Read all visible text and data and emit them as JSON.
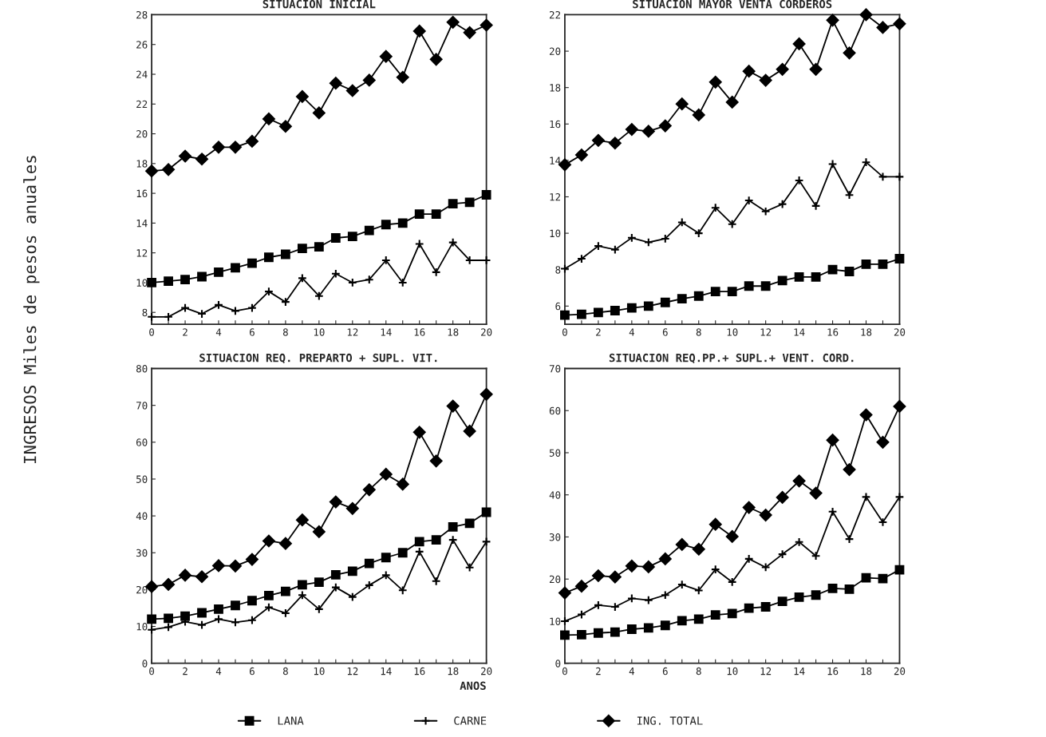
{
  "chart_data": [
    {
      "type": "line",
      "title": "SITUACION INICIAL",
      "ylabel": "INGRESOS Miles de pesos anuales",
      "legend": "bottom",
      "x": [
        0,
        1,
        2,
        3,
        4,
        5,
        6,
        7,
        8,
        9,
        10,
        11,
        12,
        13,
        14,
        15,
        16,
        17,
        18,
        19,
        20
      ],
      "series": [
        {
          "name": "LANA",
          "color": "#000000",
          "marker": "square",
          "values": [
            10.0,
            10.1,
            10.2,
            10.4,
            10.7,
            11.0,
            11.3,
            11.7,
            11.9,
            12.3,
            12.4,
            13.0,
            13.1,
            13.5,
            13.9,
            14.0,
            14.6,
            14.6,
            15.3,
            15.4,
            15.9
          ]
        },
        {
          "name": "CARNE",
          "color": "#000000",
          "marker": "cross",
          "values": [
            7.7,
            7.7,
            8.3,
            7.9,
            8.5,
            8.1,
            8.3,
            9.4,
            8.7,
            10.3,
            9.1,
            10.6,
            10.0,
            10.2,
            11.5,
            10.0,
            12.6,
            10.7,
            12.7,
            11.5,
            11.5
          ]
        },
        {
          "name": "ING. TOTAL",
          "color": "#000000",
          "marker": "diamond",
          "values": [
            17.5,
            17.6,
            18.5,
            18.3,
            19.1,
            19.1,
            19.5,
            21.0,
            20.5,
            22.5,
            21.4,
            23.4,
            22.9,
            23.6,
            25.2,
            23.8,
            26.9,
            25.0,
            27.5,
            26.8,
            27.3
          ]
        }
      ],
      "xlim": [
        0,
        20
      ],
      "xticks": [
        0,
        {
          "value": 1,
          "label": null
        },
        2,
        {
          "value": 3,
          "label": null
        },
        4,
        {
          "value": 5,
          "label": null
        },
        6,
        {
          "value": 7,
          "label": null
        },
        8,
        {
          "value": 9,
          "label": null
        },
        10,
        {
          "value": 11,
          "label": null
        },
        12,
        {
          "value": 13,
          "label": null
        },
        14,
        {
          "value": 15,
          "label": null
        },
        16,
        {
          "value": 17,
          "label": null
        },
        18,
        {
          "value": 19,
          "label": null
        },
        20
      ],
      "ylim": [
        7.2,
        28
      ],
      "yticks": [
        8,
        10,
        12,
        14,
        16,
        18,
        20,
        22,
        24,
        26,
        28
      ],
      "grid": false,
      "line_style": "solid"
    },
    {
      "type": "line",
      "title": "SITUACION MAYOR VENTA CORDEROS",
      "x": [
        0,
        1,
        2,
        3,
        4,
        5,
        6,
        7,
        8,
        9,
        10,
        11,
        12,
        13,
        14,
        15,
        16,
        17,
        18,
        19,
        20
      ],
      "series": [
        {
          "color": "#000000",
          "marker": "square",
          "values": [
            5.5,
            5.55,
            5.65,
            5.75,
            5.9,
            6.0,
            6.2,
            6.4,
            6.55,
            6.8,
            6.8,
            7.1,
            7.1,
            7.4,
            7.6,
            7.6,
            8.0,
            7.9,
            8.3,
            8.3,
            8.6
          ]
        },
        {
          "color": "#000000",
          "marker": "cross",
          "values": [
            8.05,
            8.6,
            9.3,
            9.1,
            9.75,
            9.5,
            9.7,
            10.6,
            10.0,
            11.4,
            10.5,
            11.8,
            11.2,
            11.6,
            12.9,
            11.5,
            13.8,
            12.1,
            13.9,
            13.1,
            13.1
          ]
        },
        {
          "color": "#000000",
          "marker": "diamond",
          "values": [
            13.76,
            14.3,
            15.1,
            14.95,
            15.7,
            15.6,
            15.9,
            17.1,
            16.5,
            18.3,
            17.2,
            18.9,
            18.4,
            19.0,
            20.4,
            19.0,
            21.7,
            19.9,
            22.0,
            21.3,
            21.5
          ]
        }
      ],
      "xlim": [
        0,
        20
      ],
      "xticks": [
        0,
        {
          "value": 1,
          "label": null
        },
        2,
        {
          "value": 3,
          "label": null
        },
        4,
        {
          "value": 5,
          "label": null
        },
        6,
        {
          "value": 7,
          "label": null
        },
        8,
        {
          "value": 9,
          "label": null
        },
        10,
        {
          "value": 11,
          "label": null
        },
        12,
        {
          "value": 13,
          "label": null
        },
        14,
        {
          "value": 15,
          "label": null
        },
        16,
        {
          "value": 17,
          "label": null
        },
        18,
        {
          "value": 19,
          "label": null
        },
        20
      ],
      "ylim": [
        5,
        22
      ],
      "yticks": [
        6,
        8,
        10,
        12,
        14,
        16,
        18,
        20,
        22
      ],
      "grid": false,
      "line_style": "solid"
    },
    {
      "type": "line",
      "title": "SITUACION REQ. PREPARTO + SUPL. VIT.",
      "xlabel": "ANOS",
      "x": [
        0,
        1,
        2,
        3,
        4,
        5,
        6,
        7,
        8,
        9,
        10,
        11,
        12,
        13,
        14,
        15,
        16,
        17,
        18,
        19,
        20
      ],
      "series": [
        {
          "color": "#000000",
          "marker": "square",
          "values": [
            12.0,
            12.2,
            12.8,
            13.7,
            14.7,
            15.7,
            17.0,
            18.4,
            19.5,
            21.3,
            22.0,
            24.0,
            25.0,
            27.1,
            28.7,
            30.0,
            33.0,
            33.5,
            37.0,
            38.0,
            41.0
          ]
        },
        {
          "color": "#000000",
          "marker": "cross",
          "values": [
            9.1,
            9.8,
            11.3,
            10.4,
            12.0,
            11.1,
            11.7,
            15.2,
            13.6,
            18.5,
            14.7,
            20.6,
            18.0,
            21.2,
            23.9,
            19.8,
            30.3,
            22.3,
            33.5,
            26.0,
            33.0
          ]
        },
        {
          "color": "#000000",
          "marker": "diamond",
          "values": [
            20.8,
            21.4,
            23.9,
            23.5,
            26.5,
            26.4,
            28.2,
            33.2,
            32.5,
            38.9,
            35.7,
            43.8,
            42.0,
            47.1,
            51.3,
            48.6,
            62.7,
            54.9,
            69.8,
            63.0,
            73.0
          ]
        }
      ],
      "xlim": [
        0,
        20
      ],
      "xticks": [
        0,
        {
          "value": 1,
          "label": null
        },
        2,
        {
          "value": 3,
          "label": null
        },
        4,
        {
          "value": 5,
          "label": null
        },
        6,
        {
          "value": 7,
          "label": null
        },
        8,
        {
          "value": 9,
          "label": null
        },
        10,
        {
          "value": 11,
          "label": null
        },
        12,
        {
          "value": 13,
          "label": null
        },
        14,
        {
          "value": 15,
          "label": null
        },
        16,
        {
          "value": 17,
          "label": null
        },
        18,
        {
          "value": 19,
          "label": null
        },
        20
      ],
      "ylim": [
        0,
        80
      ],
      "yticks": [
        0,
        10,
        20,
        30,
        40,
        50,
        60,
        70,
        80
      ],
      "grid": false,
      "line_style": "solid"
    },
    {
      "type": "line",
      "title": "SITUACION REQ.PP.+ SUPL.+ VENT. CORD.",
      "x": [
        0,
        1,
        2,
        3,
        4,
        5,
        6,
        7,
        8,
        9,
        10,
        11,
        12,
        13,
        14,
        15,
        16,
        17,
        18,
        19,
        20
      ],
      "series": [
        {
          "color": "#000000",
          "marker": "square",
          "values": [
            6.7,
            6.8,
            7.2,
            7.4,
            8.1,
            8.4,
            9.0,
            10.1,
            10.5,
            11.5,
            11.8,
            13.1,
            13.4,
            14.7,
            15.7,
            16.2,
            17.8,
            17.6,
            20.3,
            20.1,
            22.2
          ]
        },
        {
          "color": "#000000",
          "marker": "cross",
          "values": [
            10.0,
            11.6,
            13.8,
            13.4,
            15.4,
            15.0,
            16.2,
            18.7,
            17.3,
            22.3,
            19.3,
            24.8,
            22.8,
            25.9,
            28.8,
            25.5,
            36.0,
            29.5,
            39.5,
            33.5,
            39.5
          ]
        },
        {
          "color": "#000000",
          "marker": "diamond",
          "values": [
            16.7,
            18.3,
            20.8,
            20.5,
            23.1,
            22.9,
            24.8,
            28.2,
            27.1,
            33.0,
            30.1,
            37.0,
            35.2,
            39.4,
            43.3,
            40.4,
            53.0,
            46.0,
            59.0,
            52.5,
            61.0
          ]
        }
      ],
      "xlim": [
        0,
        20
      ],
      "xticks": [
        0,
        {
          "value": 1,
          "label": null
        },
        2,
        {
          "value": 3,
          "label": null
        },
        4,
        {
          "value": 5,
          "label": null
        },
        6,
        {
          "value": 7,
          "label": null
        },
        8,
        {
          "value": 9,
          "label": null
        },
        10,
        {
          "value": 11,
          "label": null
        },
        12,
        {
          "value": 13,
          "label": null
        },
        14,
        {
          "value": 15,
          "label": null
        },
        16,
        {
          "value": 17,
          "label": null
        },
        18,
        {
          "value": 19,
          "label": null
        },
        20
      ],
      "ylim": [
        0,
        70
      ],
      "yticks": [
        0,
        10,
        20,
        30,
        40,
        50,
        60,
        70
      ],
      "grid": false,
      "line_style": "solid"
    }
  ]
}
